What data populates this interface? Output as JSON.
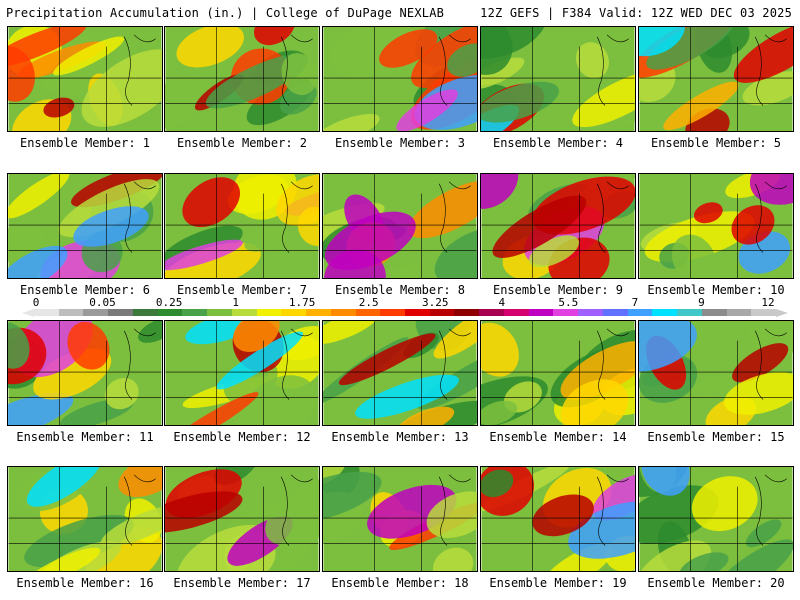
{
  "header": {
    "title_left": "Precipitation Accumulation (in.) | College of DuPage NEXLAB",
    "title_right": "12Z GEFS | F384 Valid: 12Z WED DEC 03 2025"
  },
  "legend": {
    "ticks": [
      "0",
      "0.05",
      "0.25",
      "1",
      "1.75",
      "2.5",
      "3.25",
      "4",
      "5.5",
      "7",
      "9",
      "12"
    ],
    "colors": [
      "#e6e6e6",
      "#bdbdbd",
      "#9a9a9a",
      "#7a7a7a",
      "#3c7a3c",
      "#2e8b2e",
      "#49a149",
      "#7cbf3e",
      "#b7dc3c",
      "#f0f000",
      "#ffd700",
      "#ffb000",
      "#ff8c00",
      "#ff6400",
      "#ff3b00",
      "#e00000",
      "#b80000",
      "#8e0000",
      "#a80050",
      "#d4006e",
      "#c000c0",
      "#e040e0",
      "#a060ff",
      "#6070ff",
      "#40a0ff",
      "#00e0ff",
      "#40c8c8",
      "#8c8c8c",
      "#a8a8a8",
      "#c9c9c9"
    ]
  },
  "members": [
    {
      "label": "Ensemble Member: 1"
    },
    {
      "label": "Ensemble Member: 2"
    },
    {
      "label": "Ensemble Member: 3"
    },
    {
      "label": "Ensemble Member: 4"
    },
    {
      "label": "Ensemble Member: 5"
    },
    {
      "label": "Ensemble Member: 6"
    },
    {
      "label": "Ensemble Member: 7"
    },
    {
      "label": "Ensemble Member: 8"
    },
    {
      "label": "Ensemble Member: 9"
    },
    {
      "label": "Ensemble Member: 10"
    },
    {
      "label": "Ensemble Member: 11"
    },
    {
      "label": "Ensemble Member: 12"
    },
    {
      "label": "Ensemble Member: 13"
    },
    {
      "label": "Ensemble Member: 14"
    },
    {
      "label": "Ensemble Member: 15"
    },
    {
      "label": "Ensemble Member: 16"
    },
    {
      "label": "Ensemble Member: 17"
    },
    {
      "label": "Ensemble Member: 18"
    },
    {
      "label": "Ensemble Member: 19"
    },
    {
      "label": "Ensemble Member: 20"
    }
  ]
}
